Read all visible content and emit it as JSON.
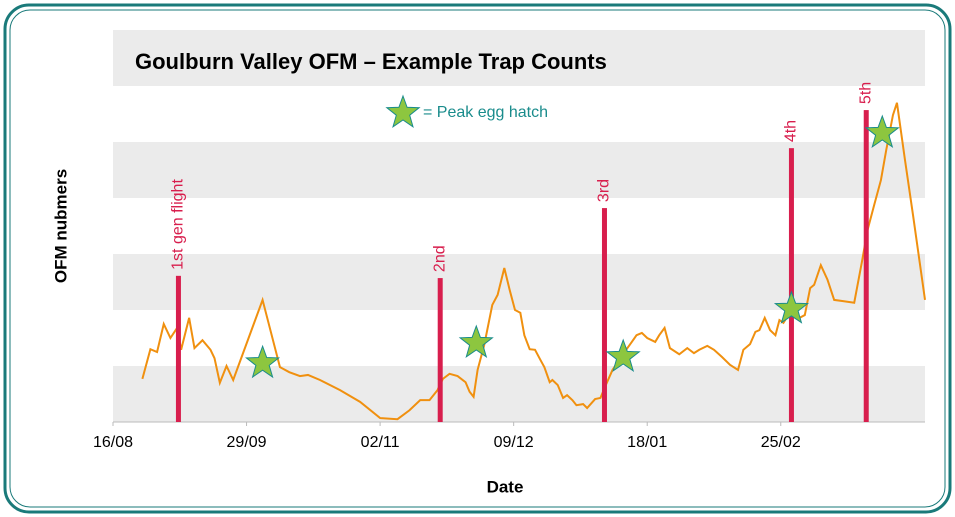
{
  "chart_data": {
    "type": "line",
    "title": "Goulburn Valley OFM – Example Trap Counts",
    "ylabel": "OFM nubmers",
    "xlabel": "Date",
    "xlim": [
      0,
      6.08
    ],
    "ylim": [
      0,
      7
    ],
    "yticks": [
      0,
      1,
      2,
      3,
      4,
      5,
      6,
      7
    ],
    "xticks": [
      {
        "value": 0,
        "label": "16/08"
      },
      {
        "value": 1,
        "label": "29/09"
      },
      {
        "value": 2,
        "label": "02/11"
      },
      {
        "value": 3,
        "label": "09/12"
      },
      {
        "value": 4,
        "label": "18/01"
      },
      {
        "value": 5,
        "label": "25/02"
      }
    ],
    "series": [
      {
        "color": "#f0900f",
        "x": [
          0.22,
          0.28,
          0.33,
          0.38,
          0.43,
          0.48,
          0.51,
          0.57,
          0.61,
          0.67,
          0.73,
          0.76,
          0.8,
          0.85,
          0.9,
          1.12,
          1.25,
          1.32,
          1.4,
          1.46,
          1.55,
          1.7,
          1.85,
          2.0,
          2.13,
          2.22,
          2.3,
          2.37,
          2.43,
          2.47,
          2.52,
          2.58,
          2.64,
          2.67,
          2.7,
          2.73,
          2.78,
          2.84,
          2.88,
          2.93,
          2.97,
          3.01,
          3.05,
          3.08,
          3.12,
          3.16,
          3.2,
          3.23,
          3.27,
          3.29,
          3.33,
          3.37,
          3.4,
          3.44,
          3.47,
          3.52,
          3.55,
          3.61,
          3.65,
          3.69,
          3.74,
          3.79,
          3.83,
          3.87,
          3.92,
          3.96,
          4.0,
          4.06,
          4.09,
          4.13,
          4.17,
          4.24,
          4.3,
          4.35,
          4.39,
          4.45,
          4.5,
          4.56,
          4.62,
          4.68,
          4.72,
          4.77,
          4.81,
          4.84,
          4.88,
          4.92,
          4.96,
          4.99,
          5.02,
          5.07,
          5.1,
          5.14,
          5.18,
          5.22,
          5.25,
          5.3,
          5.35,
          5.4,
          5.46,
          5.55,
          5.61,
          5.65,
          5.7,
          5.75,
          5.79,
          5.84,
          5.87,
          5.93,
          5.99,
          6.08
        ],
        "values": [
          0.77,
          1.3,
          1.25,
          1.75,
          1.5,
          1.68,
          1.29,
          1.86,
          1.32,
          1.46,
          1.29,
          1.14,
          0.7,
          1.0,
          0.75,
          2.18,
          0.98,
          0.89,
          0.82,
          0.84,
          0.75,
          0.57,
          0.36,
          0.07,
          0.05,
          0.21,
          0.39,
          0.39,
          0.57,
          0.77,
          0.86,
          0.82,
          0.71,
          0.54,
          0.45,
          0.93,
          1.38,
          2.09,
          2.27,
          2.75,
          2.36,
          2.0,
          1.95,
          1.55,
          1.3,
          1.29,
          1.11,
          0.98,
          0.71,
          0.75,
          0.66,
          0.43,
          0.48,
          0.39,
          0.3,
          0.32,
          0.25,
          0.41,
          0.43,
          0.66,
          0.93,
          1.11,
          1.25,
          1.38,
          1.55,
          1.59,
          1.5,
          1.43,
          1.55,
          1.68,
          1.32,
          1.21,
          1.32,
          1.23,
          1.29,
          1.36,
          1.29,
          1.16,
          1.02,
          0.93,
          1.29,
          1.39,
          1.61,
          1.64,
          1.86,
          1.64,
          1.55,
          1.82,
          1.77,
          1.96,
          1.91,
          1.86,
          1.91,
          2.39,
          2.45,
          2.8,
          2.54,
          2.18,
          2.16,
          2.13,
          2.89,
          3.43,
          3.88,
          4.32,
          4.86,
          5.48,
          5.7,
          4.68,
          3.7,
          2.18
        ]
      }
    ],
    "flights": {
      "color": "#d81e4d",
      "labels": [
        "1st gen flight",
        "2nd",
        "3rd",
        "4th",
        "5th"
      ],
      "x": [
        0.49,
        2.45,
        3.68,
        5.08,
        5.64
      ],
      "values": [
        2.61,
        2.57,
        3.82,
        4.89,
        5.57
      ]
    },
    "peaks": {
      "name": "= Peak egg hatch",
      "color": "#8dc63f",
      "x": [
        1.12,
        2.72,
        3.82,
        5.08,
        5.76
      ],
      "values": [
        1.05,
        1.41,
        1.16,
        2.02,
        5.16
      ]
    }
  }
}
